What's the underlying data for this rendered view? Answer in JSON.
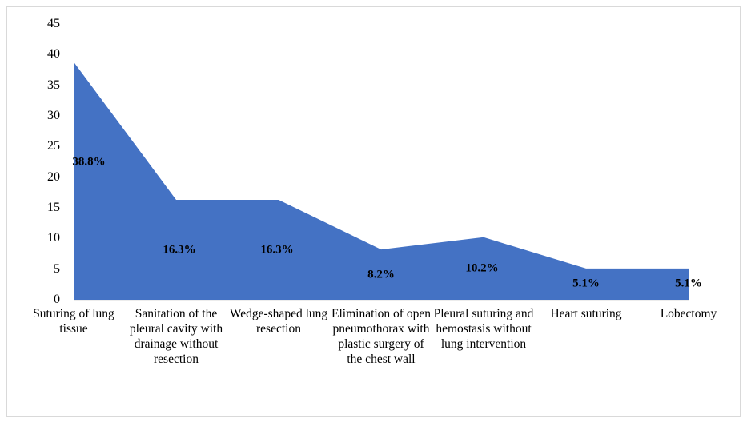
{
  "chart_data": {
    "type": "area",
    "title": "",
    "categories": [
      "Suturing of lung tissue",
      "Sanitation of the pleural cavity with drainage without resection",
      "Wedge-shaped lung resection",
      "Elimination of open pneumothorax with plastic surgery of the chest wall",
      "Pleural suturing and hemostasis without lung intervention",
      "Heart suturing",
      "Lobectomy"
    ],
    "values": [
      38.8,
      16.3,
      16.3,
      8.2,
      10.2,
      5.1,
      5.1
    ],
    "data_labels": [
      "38.8%",
      "16.3%",
      "16.3%",
      "8.2%",
      "10.2%",
      "5.1%",
      "5.1%"
    ],
    "xlabel": "",
    "ylabel": "",
    "ylim": [
      0,
      45
    ],
    "y_ticks": [
      0,
      5,
      10,
      15,
      20,
      25,
      30,
      35,
      40,
      45
    ],
    "grid": false,
    "legend_position": "none",
    "colors": {
      "series_fill": "#4472C4",
      "frame_border": "#D9D9D9",
      "axis_line": "#D9D9D9",
      "text": "#000000",
      "background": "#FFFFFF"
    }
  }
}
